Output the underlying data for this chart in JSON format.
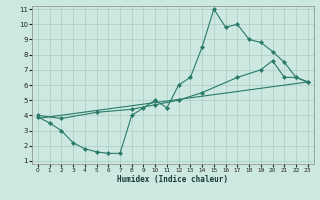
{
  "line1_x": [
    0,
    1,
    2,
    3,
    4,
    5,
    6,
    7,
    8,
    9,
    10,
    11,
    12,
    13,
    14,
    15,
    16,
    17,
    18,
    19,
    20,
    21,
    22,
    23
  ],
  "line1_y": [
    3.9,
    3.5,
    3.0,
    2.2,
    1.8,
    1.6,
    1.5,
    1.5,
    4.0,
    4.5,
    5.0,
    4.5,
    6.0,
    6.5,
    8.5,
    11.0,
    9.8,
    10.0,
    9.0,
    8.8,
    8.2,
    7.5,
    6.5,
    6.2
  ],
  "line2_x": [
    0,
    2,
    5,
    8,
    10,
    12,
    14,
    17,
    19,
    20,
    21,
    22,
    23
  ],
  "line2_y": [
    4.0,
    3.8,
    4.2,
    4.4,
    4.7,
    5.0,
    5.5,
    6.5,
    7.0,
    7.6,
    6.5,
    6.5,
    6.2
  ],
  "line3_x": [
    0,
    23
  ],
  "line3_y": [
    3.8,
    6.2
  ],
  "color": "#2a7a6a",
  "bg_color": "#cce8e0",
  "grid_color": "#aaccc4",
  "xlabel": "Humidex (Indice chaleur)",
  "ylim": [
    1,
    11
  ],
  "xlim": [
    0,
    23
  ],
  "yticks": [
    1,
    2,
    3,
    4,
    5,
    6,
    7,
    8,
    9,
    10,
    11
  ],
  "xticks": [
    0,
    1,
    2,
    3,
    4,
    5,
    6,
    7,
    8,
    9,
    10,
    11,
    12,
    13,
    14,
    15,
    16,
    17,
    18,
    19,
    20,
    21,
    22,
    23
  ]
}
